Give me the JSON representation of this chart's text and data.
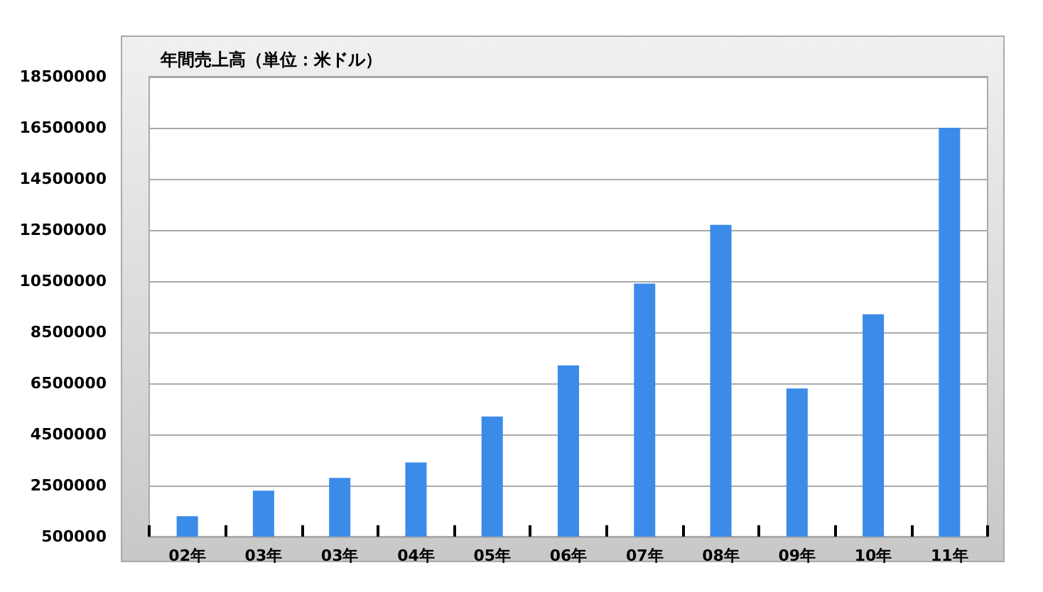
{
  "chart_data": {
    "type": "bar",
    "title": "年間売上高（単位：米ドル）",
    "categories": [
      "02年",
      "03年",
      "03年",
      "04年",
      "05年",
      "06年",
      "07年",
      "08年",
      "09年",
      "10年",
      "11年"
    ],
    "values": [
      1300000,
      2300000,
      2800000,
      3400000,
      5200000,
      7200000,
      10400000,
      12700000,
      6300000,
      9200000,
      16500000
    ],
    "color": "#3b8be9",
    "ylim": [
      500000,
      18500000
    ],
    "yticks": [
      500000,
      2500000,
      4500000,
      6500000,
      8500000,
      10500000,
      12500000,
      14500000,
      16500000,
      18500000
    ],
    "grid": "y"
  }
}
